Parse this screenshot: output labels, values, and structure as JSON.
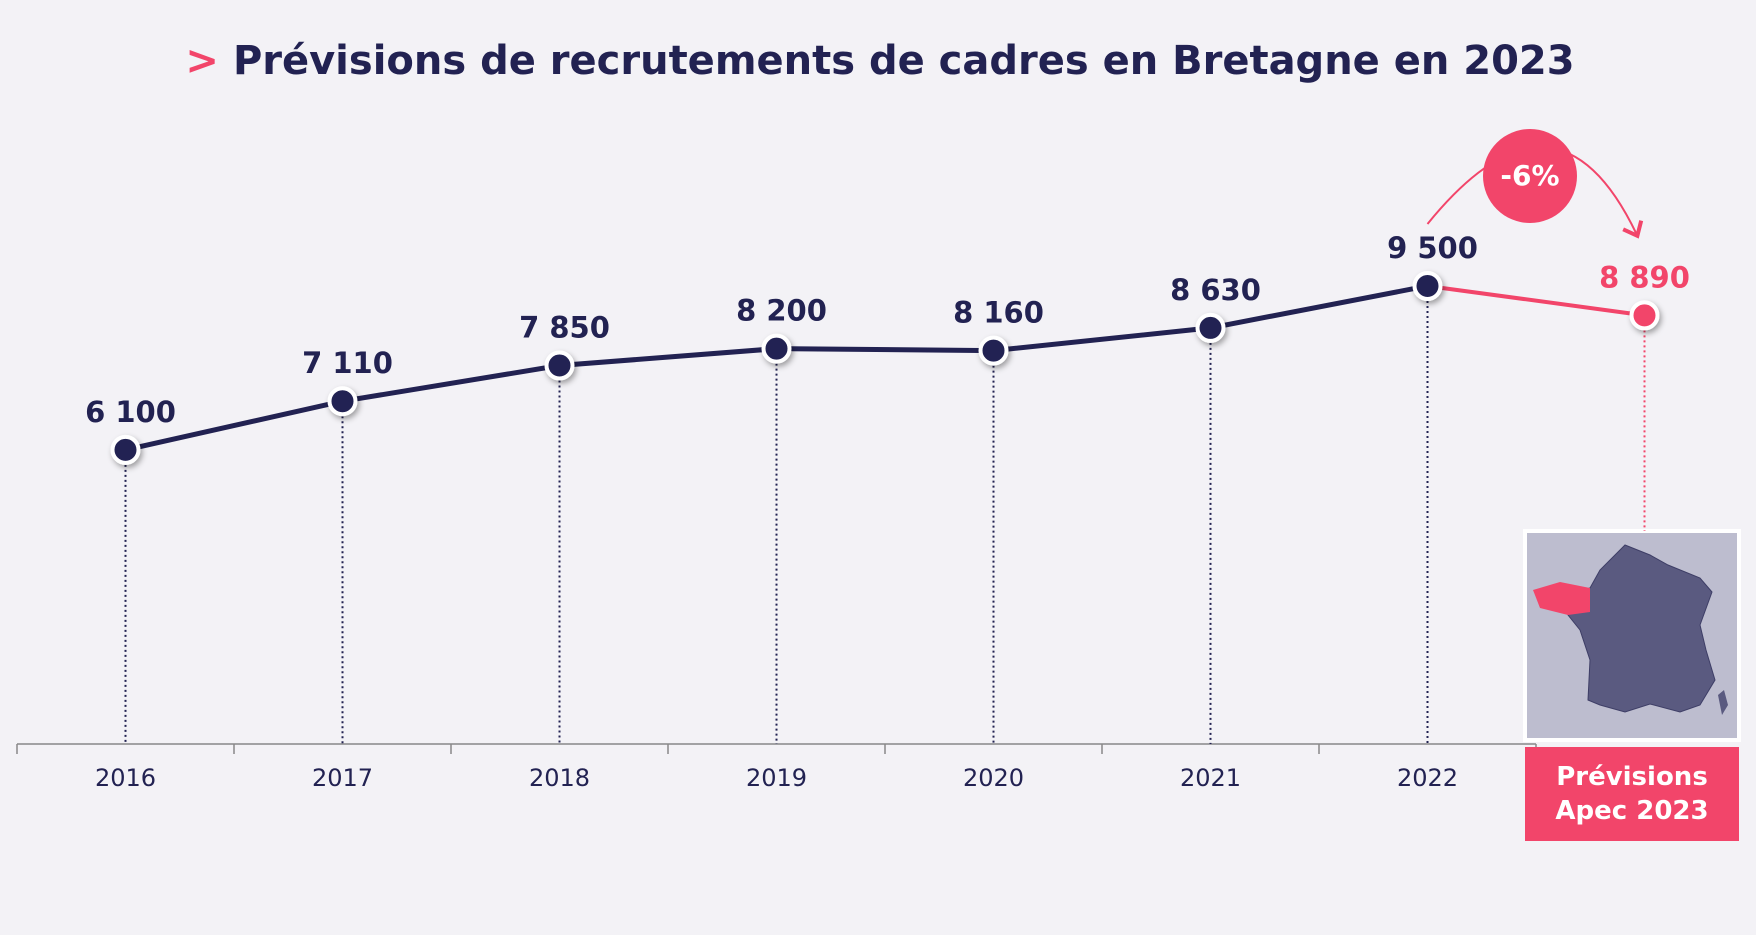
{
  "chart_data": {
    "type": "line",
    "title_marker": ">",
    "title": "Prévisions de recrutements de cadres en Bretagne en 2023",
    "categories": [
      "2016",
      "2017",
      "2018",
      "2019",
      "2020",
      "2021",
      "2022",
      "Prévisions Apec 2023"
    ],
    "series": [
      {
        "color": "#222252",
        "forecast_color": "#f2456a",
        "values": [
          6100,
          7110,
          7850,
          8200,
          8160,
          8630,
          9500,
          8890
        ],
        "value_labels": [
          "6 100",
          "7 110",
          "7 850",
          "8 200",
          "8 160",
          "8 630",
          "9 500",
          "8 890"
        ]
      }
    ],
    "annotation": "-6%",
    "ylim": [
      0,
      14000
    ]
  }
}
